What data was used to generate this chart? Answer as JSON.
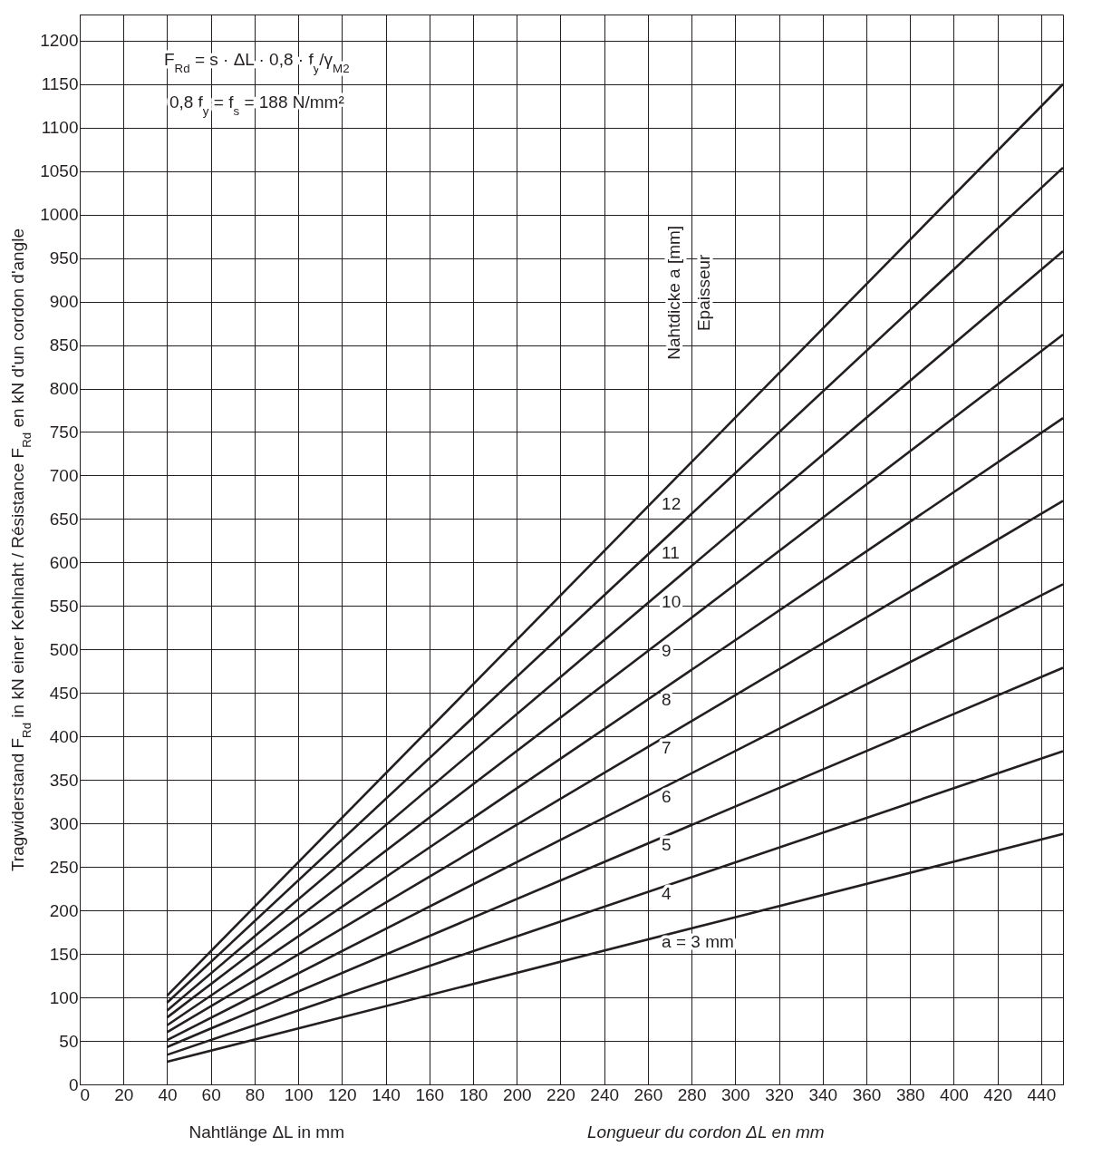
{
  "chart_data": {
    "type": "line",
    "xlabel": "Nahtlänge ΔL in mm",
    "ylabel": "Tragwiderstand F$_{Rd}$ in kN einer Kehlnaht / Résistance F$_{Rd}$ en kN d'un cordon d'angle",
    "annotations": [
      "F$_{Rd}$ = s · ΔL · 0,8 · f$_{y}$/γ$_{M2}$",
      "0,8 f$_{y}$ = f$_{s}$ = 188 N/mm²",
      "Nahtdicke a [mm]",
      "Epaisseur",
      "Longueur du cordon ΔL en mm"
    ],
    "x": [
      40,
      450
    ],
    "series": [
      {
        "name": "a = 3 mm",
        "color": "#231f20",
        "values": [
          26,
          288
        ]
      },
      {
        "name": "4",
        "color": "#231f20",
        "values": [
          34,
          383
        ]
      },
      {
        "name": "5",
        "color": "#231f20",
        "values": [
          43,
          479
        ]
      },
      {
        "name": "6",
        "color": "#231f20",
        "values": [
          51,
          575
        ]
      },
      {
        "name": "7",
        "color": "#231f20",
        "values": [
          60,
          671
        ]
      },
      {
        "name": "8",
        "color": "#231f20",
        "values": [
          68,
          766
        ]
      },
      {
        "name": "9",
        "color": "#231f20",
        "values": [
          77,
          862
        ]
      },
      {
        "name": "10",
        "color": "#231f20",
        "values": [
          85,
          958
        ]
      },
      {
        "name": "11",
        "color": "#231f20",
        "values": [
          94,
          1054
        ]
      },
      {
        "name": "12",
        "color": "#231f20",
        "values": [
          102,
          1150
        ]
      }
    ],
    "xlim": [
      0,
      450
    ],
    "ylim": [
      0,
      1230
    ],
    "xticks": [
      0,
      20,
      40,
      60,
      80,
      100,
      120,
      140,
      160,
      180,
      200,
      220,
      240,
      260,
      280,
      300,
      320,
      340,
      360,
      380,
      400,
      420,
      440
    ],
    "yticks": [
      0,
      50,
      100,
      150,
      200,
      250,
      300,
      350,
      400,
      450,
      500,
      550,
      600,
      650,
      700,
      750,
      800,
      850,
      900,
      950,
      1000,
      1050,
      1100,
      1150,
      1200
    ],
    "grid": true,
    "legend": false,
    "marker": "none",
    "line_style": "solid"
  }
}
